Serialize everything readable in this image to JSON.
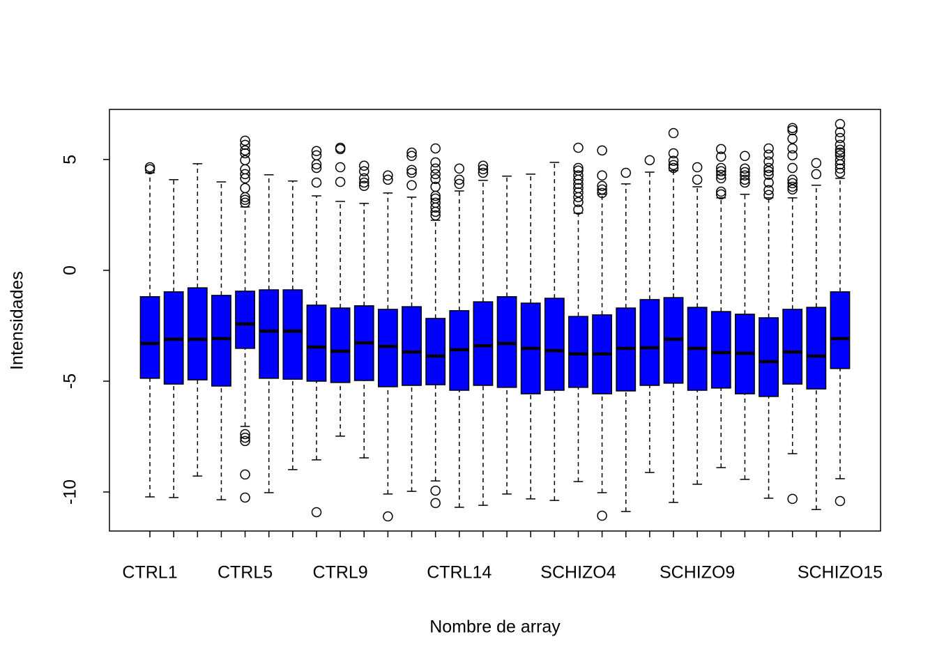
{
  "chart_data": {
    "type": "boxplot",
    "x_label": "Nombre de array",
    "y_label": "Intensidades",
    "categories": [
      "CTRL1",
      null,
      null,
      null,
      "CTRL5",
      null,
      null,
      null,
      "CTRL9",
      null,
      null,
      null,
      null,
      "CTRL14",
      null,
      null,
      null,
      null,
      "SCHIZO4",
      null,
      null,
      null,
      null,
      "SCHIZO9",
      null,
      null,
      null,
      null,
      null,
      "SCHIZO15"
    ],
    "color": "#0000ff",
    "ylim": [
      -11.76,
      7.26
    ],
    "yticks": [
      -10,
      -5,
      0,
      5
    ],
    "stats": [
      [
        -10.22,
        -4.87,
        -3.3,
        -1.19,
        4.4
      ],
      [
        -10.25,
        -5.13,
        -3.11,
        -0.97,
        4.09
      ],
      [
        -9.28,
        -4.94,
        -3.11,
        -0.79,
        4.81
      ],
      [
        -10.35,
        -5.22,
        -3.08,
        -1.13,
        3.99
      ],
      [
        -7.04,
        -3.52,
        -2.42,
        -0.94,
        2.86
      ],
      [
        -10.03,
        -4.87,
        -2.74,
        -0.88,
        4.31
      ],
      [
        -8.99,
        -4.91,
        -2.74,
        -0.88,
        4.03
      ],
      [
        -8.55,
        -5.0,
        -3.46,
        -1.57,
        3.36
      ],
      [
        -7.48,
        -5.06,
        -3.65,
        -1.7,
        3.11
      ],
      [
        -8.46,
        -4.97,
        -3.27,
        -1.6,
        3.02
      ],
      [
        -10.09,
        -5.25,
        -3.43,
        -1.76,
        3.49
      ],
      [
        -9.97,
        -5.19,
        -3.68,
        -1.64,
        3.3
      ],
      [
        -9.5,
        -5.16,
        -3.87,
        -2.17,
        2.26
      ],
      [
        -10.69,
        -5.41,
        -3.58,
        -1.82,
        3.58
      ],
      [
        -10.6,
        -5.19,
        -3.4,
        -1.42,
        4.06
      ],
      [
        -10.09,
        -5.28,
        -3.3,
        -1.19,
        4.25
      ],
      [
        -10.31,
        -5.57,
        -3.52,
        -1.48,
        4.34
      ],
      [
        -10.38,
        -5.41,
        -3.62,
        -1.26,
        4.87
      ],
      [
        -9.53,
        -5.28,
        -3.77,
        -2.08,
        2.58
      ],
      [
        -10.03,
        -5.57,
        -3.77,
        -2.01,
        3.43
      ],
      [
        -10.88,
        -5.44,
        -3.52,
        -1.7,
        3.9
      ],
      [
        -9.12,
        -5.19,
        -3.49,
        -1.32,
        4.43
      ],
      [
        -10.47,
        -5.09,
        -3.11,
        -1.23,
        4.5
      ],
      [
        -9.65,
        -5.41,
        -3.52,
        -1.67,
        3.77
      ],
      [
        -8.9,
        -5.31,
        -3.71,
        -1.86,
        3.27
      ],
      [
        -9.43,
        -5.57,
        -3.74,
        -1.98,
        3.43
      ],
      [
        -10.28,
        -5.69,
        -4.12,
        -2.14,
        3.27
      ],
      [
        -8.27,
        -5.13,
        -3.68,
        -1.76,
        3.27
      ],
      [
        -10.79,
        -5.35,
        -3.87,
        -1.67,
        3.84
      ],
      [
        -9.4,
        -4.43,
        -3.08,
        -0.97,
        4.15
      ]
    ],
    "outliers": [
      [
        4.65,
        4.56
      ],
      [],
      [],
      [],
      [
        5.85,
        5.66,
        5.41,
        5.28,
        4.97,
        4.56,
        4.34,
        4.15,
        3.71,
        3.3,
        3.18,
        3.05,
        -7.39,
        -7.55,
        -7.7,
        -9.21,
        -10.25
      ],
      [],
      [],
      [
        5.38,
        5.19,
        4.78,
        4.62,
        3.96,
        -10.91
      ],
      [
        5.53,
        5.47,
        4.65,
        3.99
      ],
      [
        4.72,
        4.47,
        4.15,
        3.96,
        3.81
      ],
      [
        4.28,
        4.09,
        -11.1
      ],
      [
        5.31,
        5.16,
        4.53,
        4.4,
        3.84
      ],
      [
        5.5,
        4.87,
        4.59,
        4.34,
        4.12,
        3.77,
        3.36,
        3.24,
        3.05,
        2.83,
        2.64,
        2.48,
        -9.94,
        -10.5
      ],
      [
        4.59,
        4.09,
        3.9
      ],
      [
        4.72,
        4.56,
        4.4
      ],
      [],
      [],
      [],
      [
        5.53,
        4.62,
        4.5,
        4.28,
        4.09,
        3.9,
        3.71,
        3.52,
        3.3,
        3.08,
        2.74
      ],
      [
        5.41,
        4.28,
        3.81,
        3.65,
        3.49,
        -11.07
      ],
      [
        4.4
      ],
      [
        4.97
      ],
      [
        6.19,
        5.28,
        4.94,
        4.75,
        4.62
      ],
      [
        4.65,
        4.09
      ],
      [
        5.47,
        5.13,
        4.62,
        4.47,
        4.31,
        4.15,
        3.55,
        3.43
      ],
      [
        5.16,
        4.59,
        4.43,
        4.28,
        4.09,
        3.96
      ],
      [
        5.5,
        5.22,
        4.91,
        4.62,
        4.47,
        4.31,
        3.96,
        3.62,
        3.4
      ],
      [
        6.42,
        6.32,
        5.94,
        5.5,
        5.19,
        4.62,
        4.09,
        3.93,
        3.77,
        3.65,
        -10.31
      ],
      [
        4.84,
        4.34
      ],
      [
        6.6,
        6.23,
        5.97,
        5.66,
        5.44,
        5.31,
        5.19,
        4.97,
        4.78,
        4.59,
        4.4,
        -10.41
      ]
    ]
  }
}
